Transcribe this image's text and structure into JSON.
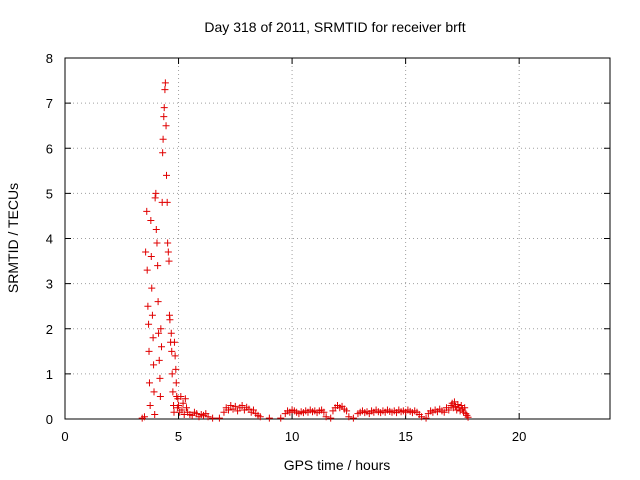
{
  "chart_data": {
    "type": "scatter",
    "title": "Day 318 of 2011, SRMTID for receiver brft",
    "xlabel": "GPS time / hours",
    "ylabel": "SRMTID / TECUs",
    "xlim": [
      0,
      24
    ],
    "ylim": [
      0,
      8
    ],
    "xticks": [
      0,
      5,
      10,
      15,
      20
    ],
    "yticks": [
      0,
      1,
      2,
      3,
      4,
      5,
      6,
      7,
      8
    ],
    "grid": true,
    "marker": "plus",
    "series": [
      {
        "name": "brft",
        "color": "#e00000",
        "points": [
          [
            3.4,
            0.02
          ],
          [
            3.5,
            0.05
          ],
          [
            3.55,
            3.7
          ],
          [
            3.6,
            4.6
          ],
          [
            3.62,
            3.3
          ],
          [
            3.65,
            2.5
          ],
          [
            3.68,
            2.1
          ],
          [
            3.7,
            1.5
          ],
          [
            3.72,
            0.8
          ],
          [
            3.75,
            0.3
          ],
          [
            3.78,
            4.4
          ],
          [
            3.8,
            3.6
          ],
          [
            3.82,
            2.9
          ],
          [
            3.85,
            2.3
          ],
          [
            3.88,
            1.8
          ],
          [
            3.9,
            1.2
          ],
          [
            3.92,
            0.6
          ],
          [
            3.95,
            0.1
          ],
          [
            3.97,
            4.9
          ],
          [
            4.0,
            5.0
          ],
          [
            4.02,
            4.2
          ],
          [
            4.05,
            3.9
          ],
          [
            4.08,
            3.4
          ],
          [
            4.1,
            2.6
          ],
          [
            4.12,
            1.9
          ],
          [
            4.15,
            1.3
          ],
          [
            4.18,
            0.9
          ],
          [
            4.2,
            0.5
          ],
          [
            4.22,
            2.0
          ],
          [
            4.25,
            1.6
          ],
          [
            4.28,
            4.8
          ],
          [
            4.3,
            5.9
          ],
          [
            4.32,
            6.2
          ],
          [
            4.35,
            6.7
          ],
          [
            4.37,
            6.9
          ],
          [
            4.4,
            7.3
          ],
          [
            4.42,
            7.45
          ],
          [
            4.45,
            6.5
          ],
          [
            4.47,
            5.4
          ],
          [
            4.5,
            4.8
          ],
          [
            4.52,
            3.9
          ],
          [
            4.55,
            3.7
          ],
          [
            4.58,
            3.5
          ],
          [
            4.6,
            2.3
          ],
          [
            4.62,
            2.2
          ],
          [
            4.65,
            1.7
          ],
          [
            4.68,
            1.9
          ],
          [
            4.7,
            1.5
          ],
          [
            4.72,
            1.0
          ],
          [
            4.75,
            0.6
          ],
          [
            4.78,
            0.3
          ],
          [
            4.8,
            0.15
          ],
          [
            4.82,
            1.7
          ],
          [
            4.85,
            1.4
          ],
          [
            4.88,
            1.1
          ],
          [
            4.9,
            0.8
          ],
          [
            4.92,
            0.5
          ],
          [
            4.95,
            0.25
          ],
          [
            4.97,
            0.45
          ],
          [
            5.0,
            0.3
          ],
          [
            5.05,
            0.15
          ],
          [
            5.1,
            0.5
          ],
          [
            5.15,
            0.2
          ],
          [
            5.2,
            0.35
          ],
          [
            5.25,
            0.1
          ],
          [
            5.3,
            0.45
          ],
          [
            5.35,
            0.25
          ],
          [
            5.4,
            0.15
          ],
          [
            5.5,
            0.1
          ],
          [
            5.6,
            0.08
          ],
          [
            5.7,
            0.15
          ],
          [
            5.8,
            0.12
          ],
          [
            5.9,
            0.05
          ],
          [
            6.0,
            0.1
          ],
          [
            6.1,
            0.08
          ],
          [
            6.2,
            0.12
          ],
          [
            6.3,
            0.05
          ],
          [
            6.5,
            0.02
          ],
          [
            6.8,
            0.02
          ],
          [
            7.0,
            0.15
          ],
          [
            7.1,
            0.25
          ],
          [
            7.2,
            0.2
          ],
          [
            7.3,
            0.3
          ],
          [
            7.4,
            0.22
          ],
          [
            7.5,
            0.28
          ],
          [
            7.6,
            0.18
          ],
          [
            7.7,
            0.25
          ],
          [
            7.8,
            0.3
          ],
          [
            7.9,
            0.2
          ],
          [
            8.0,
            0.26
          ],
          [
            8.1,
            0.22
          ],
          [
            8.2,
            0.15
          ],
          [
            8.3,
            0.2
          ],
          [
            8.4,
            0.12
          ],
          [
            8.5,
            0.08
          ],
          [
            8.6,
            0.05
          ],
          [
            9.0,
            0.02
          ],
          [
            9.5,
            0.02
          ],
          [
            9.7,
            0.12
          ],
          [
            9.8,
            0.18
          ],
          [
            9.9,
            0.15
          ],
          [
            10.0,
            0.2
          ],
          [
            10.1,
            0.18
          ],
          [
            10.2,
            0.15
          ],
          [
            10.3,
            0.12
          ],
          [
            10.4,
            0.16
          ],
          [
            10.5,
            0.14
          ],
          [
            10.6,
            0.18
          ],
          [
            10.7,
            0.15
          ],
          [
            10.8,
            0.2
          ],
          [
            10.9,
            0.16
          ],
          [
            11.0,
            0.18
          ],
          [
            11.1,
            0.14
          ],
          [
            11.2,
            0.18
          ],
          [
            11.3,
            0.2
          ],
          [
            11.4,
            0.15
          ],
          [
            11.5,
            0.05
          ],
          [
            11.7,
            0.02
          ],
          [
            11.8,
            0.18
          ],
          [
            11.9,
            0.25
          ],
          [
            12.0,
            0.3
          ],
          [
            12.1,
            0.25
          ],
          [
            12.2,
            0.28
          ],
          [
            12.3,
            0.22
          ],
          [
            12.4,
            0.18
          ],
          [
            12.5,
            0.05
          ],
          [
            12.7,
            0.02
          ],
          [
            12.9,
            0.12
          ],
          [
            13.0,
            0.15
          ],
          [
            13.1,
            0.18
          ],
          [
            13.2,
            0.14
          ],
          [
            13.3,
            0.16
          ],
          [
            13.4,
            0.12
          ],
          [
            13.5,
            0.18
          ],
          [
            13.6,
            0.15
          ],
          [
            13.7,
            0.2
          ],
          [
            13.8,
            0.16
          ],
          [
            13.9,
            0.14
          ],
          [
            14.0,
            0.18
          ],
          [
            14.1,
            0.15
          ],
          [
            14.2,
            0.2
          ],
          [
            14.3,
            0.17
          ],
          [
            14.4,
            0.15
          ],
          [
            14.5,
            0.18
          ],
          [
            14.6,
            0.14
          ],
          [
            14.7,
            0.2
          ],
          [
            14.8,
            0.16
          ],
          [
            14.9,
            0.18
          ],
          [
            15.0,
            0.15
          ],
          [
            15.1,
            0.2
          ],
          [
            15.2,
            0.17
          ],
          [
            15.3,
            0.14
          ],
          [
            15.4,
            0.18
          ],
          [
            15.5,
            0.15
          ],
          [
            15.6,
            0.1
          ],
          [
            15.7,
            0.05
          ],
          [
            15.9,
            0.02
          ],
          [
            16.0,
            0.12
          ],
          [
            16.1,
            0.18
          ],
          [
            16.2,
            0.15
          ],
          [
            16.3,
            0.2
          ],
          [
            16.4,
            0.16
          ],
          [
            16.5,
            0.22
          ],
          [
            16.6,
            0.18
          ],
          [
            16.7,
            0.15
          ],
          [
            16.8,
            0.25
          ],
          [
            16.9,
            0.2
          ],
          [
            17.0,
            0.3
          ],
          [
            17.05,
            0.35
          ],
          [
            17.1,
            0.25
          ],
          [
            17.15,
            0.38
          ],
          [
            17.2,
            0.28
          ],
          [
            17.25,
            0.2
          ],
          [
            17.3,
            0.32
          ],
          [
            17.35,
            0.25
          ],
          [
            17.4,
            0.18
          ],
          [
            17.45,
            0.3
          ],
          [
            17.5,
            0.22
          ],
          [
            17.55,
            0.15
          ],
          [
            17.6,
            0.25
          ],
          [
            17.65,
            0.12
          ],
          [
            17.7,
            0.08
          ],
          [
            17.75,
            0.04
          ]
        ]
      }
    ]
  }
}
